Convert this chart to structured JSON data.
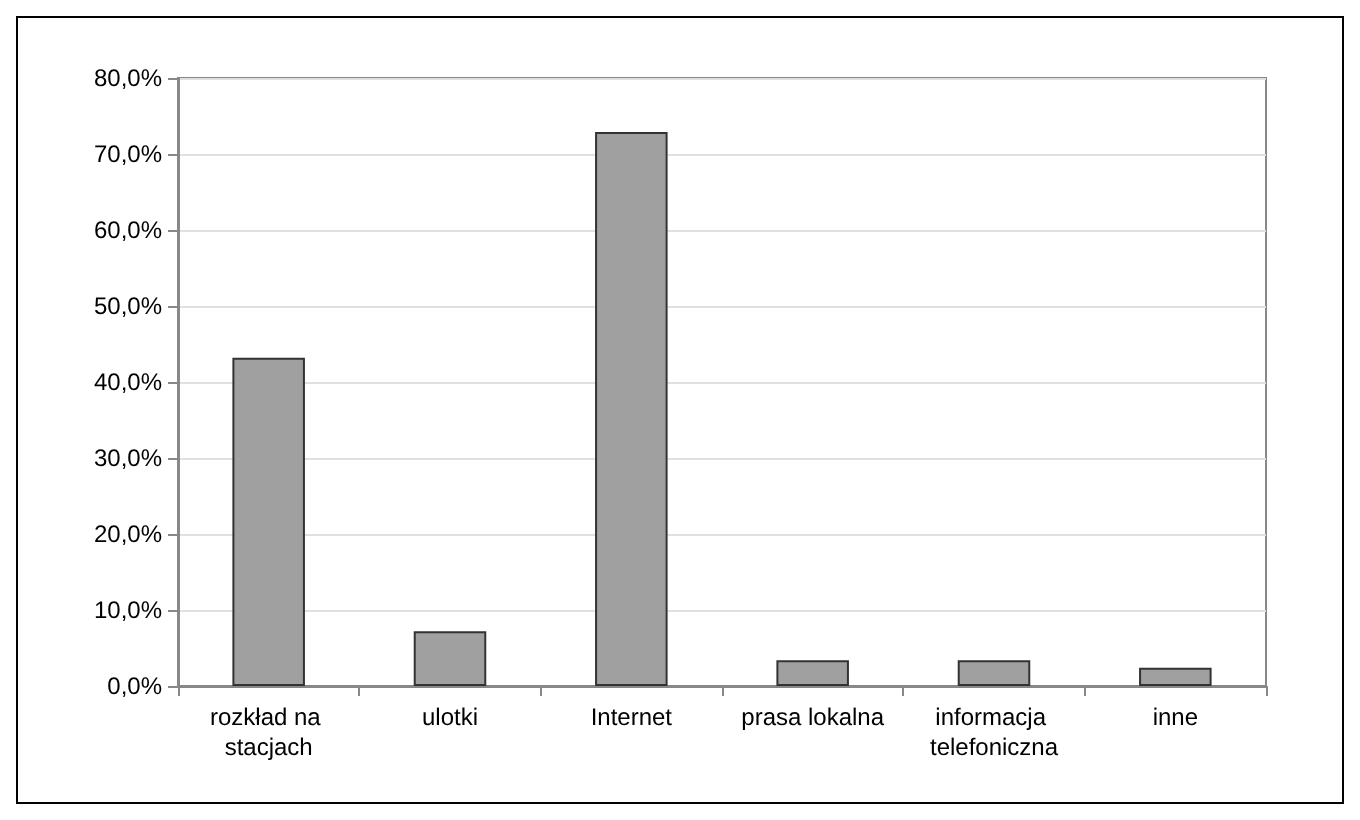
{
  "chart_data": {
    "type": "bar",
    "categories": [
      "rozkład na stacjach",
      "ulotki",
      "Internet",
      "prasa lokalna",
      "informacja telefoniczna",
      "inne"
    ],
    "values": [
      43.2,
      7.2,
      72.9,
      3.4,
      3.4,
      2.4
    ],
    "color": "#a0a0a0",
    "ylim": [
      0,
      80
    ],
    "yticks": [
      {
        "value": 0,
        "label": "0,0%"
      },
      {
        "value": 10,
        "label": "10,0%"
      },
      {
        "value": 20,
        "label": "20,0%"
      },
      {
        "value": 30,
        "label": "30,0%"
      },
      {
        "value": 40,
        "label": "40,0%"
      },
      {
        "value": 50,
        "label": "50,0%"
      },
      {
        "value": 60,
        "label": "60,0%"
      },
      {
        "value": 70,
        "label": "70,0%"
      },
      {
        "value": 80,
        "label": "80,0%"
      }
    ],
    "grid": "y"
  }
}
